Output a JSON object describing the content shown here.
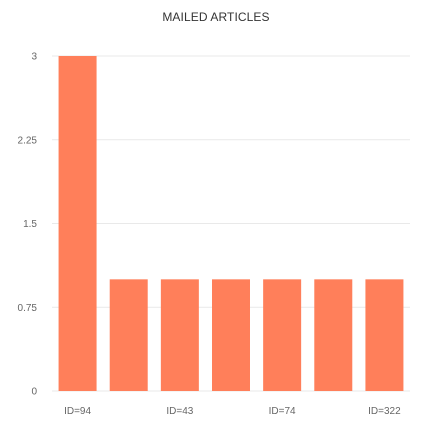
{
  "chart_data": {
    "type": "bar",
    "title": "MAILED ARTICLES",
    "xlabel": "",
    "ylabel": "",
    "ylim": [
      0,
      3
    ],
    "yticks": [
      "0",
      "0.75",
      "1.5",
      "2.25",
      "3"
    ],
    "categories": [
      "ID=94",
      "",
      "ID=43",
      "",
      "ID=74",
      "",
      "ID=322"
    ],
    "values": [
      3,
      1,
      1,
      1,
      1,
      1,
      1
    ],
    "bar_color": "#ff7f5a",
    "grid": true,
    "legend": "none"
  }
}
